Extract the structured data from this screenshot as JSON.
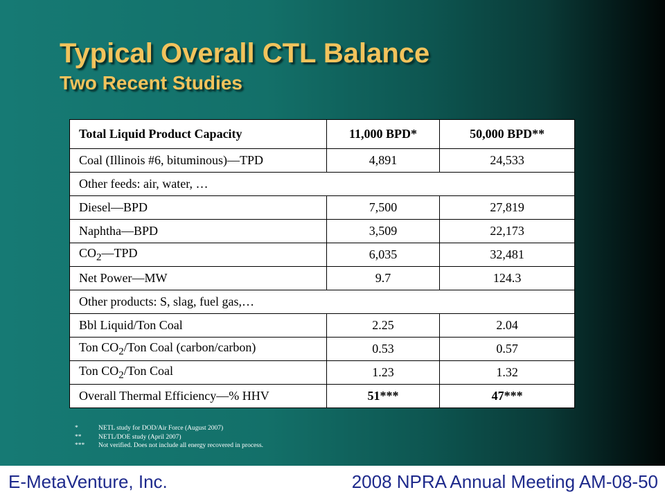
{
  "title": "Typical Overall CTL Balance",
  "subtitle": "Two Recent Studies",
  "table": {
    "header": [
      "Total Liquid Product Capacity",
      "11,000 BPD*",
      "50,000 BPD**"
    ],
    "rows": [
      {
        "label": "Coal (Illinois #6, bituminous)—TPD",
        "v1": "4,891",
        "v2": "24,533"
      },
      {
        "label": "Other feeds:  air, water, …"
      },
      {
        "label": "Diesel—BPD",
        "v1": "7,500",
        "v2": "27,819"
      },
      {
        "label": "Naphtha—BPD",
        "v1": "3,509",
        "v2": "22,173"
      },
      {
        "label_pre": "CO",
        "label_sub": "2",
        "label_post": "—TPD",
        "v1": "6,035",
        "v2": "32,481"
      },
      {
        "label": "Net Power—MW",
        "v1": "9.7",
        "v2": "124.3"
      },
      {
        "label": "Other products:  S, slag, fuel gas,…"
      },
      {
        "label": "Bbl Liquid/Ton Coal",
        "v1": "2.25",
        "v2": "2.04"
      },
      {
        "label_pre": "Ton CO",
        "label_sub": "2",
        "label_post": "/Ton Coal (carbon/carbon)",
        "v1": "0.53",
        "v2": "0.57"
      },
      {
        "label_pre": "Ton CO",
        "label_sub": "2",
        "label_post": "/Ton Coal",
        "v1": "1.23",
        "v2": "1.32"
      },
      {
        "label": "Overall Thermal Efficiency—% HHV",
        "v1": "51***",
        "v2": "47***"
      }
    ]
  },
  "footnotes": [
    {
      "mark": "*",
      "text": "NETL study for DOD/Air Force (August  2007)"
    },
    {
      "mark": "**",
      "text": "NETL/DOE  study (April  2007)"
    },
    {
      "mark": "***",
      "text": "Not verified.  Does not include all energy recovered in process."
    }
  ],
  "footer": {
    "left": "E-MetaVenture, Inc.",
    "right": "2008 NPRA Annual Meeting AM-08-50"
  },
  "colors": {
    "title": "#f2c35c",
    "background_teal": "#137069",
    "footer_text": "#1e2a8c"
  }
}
